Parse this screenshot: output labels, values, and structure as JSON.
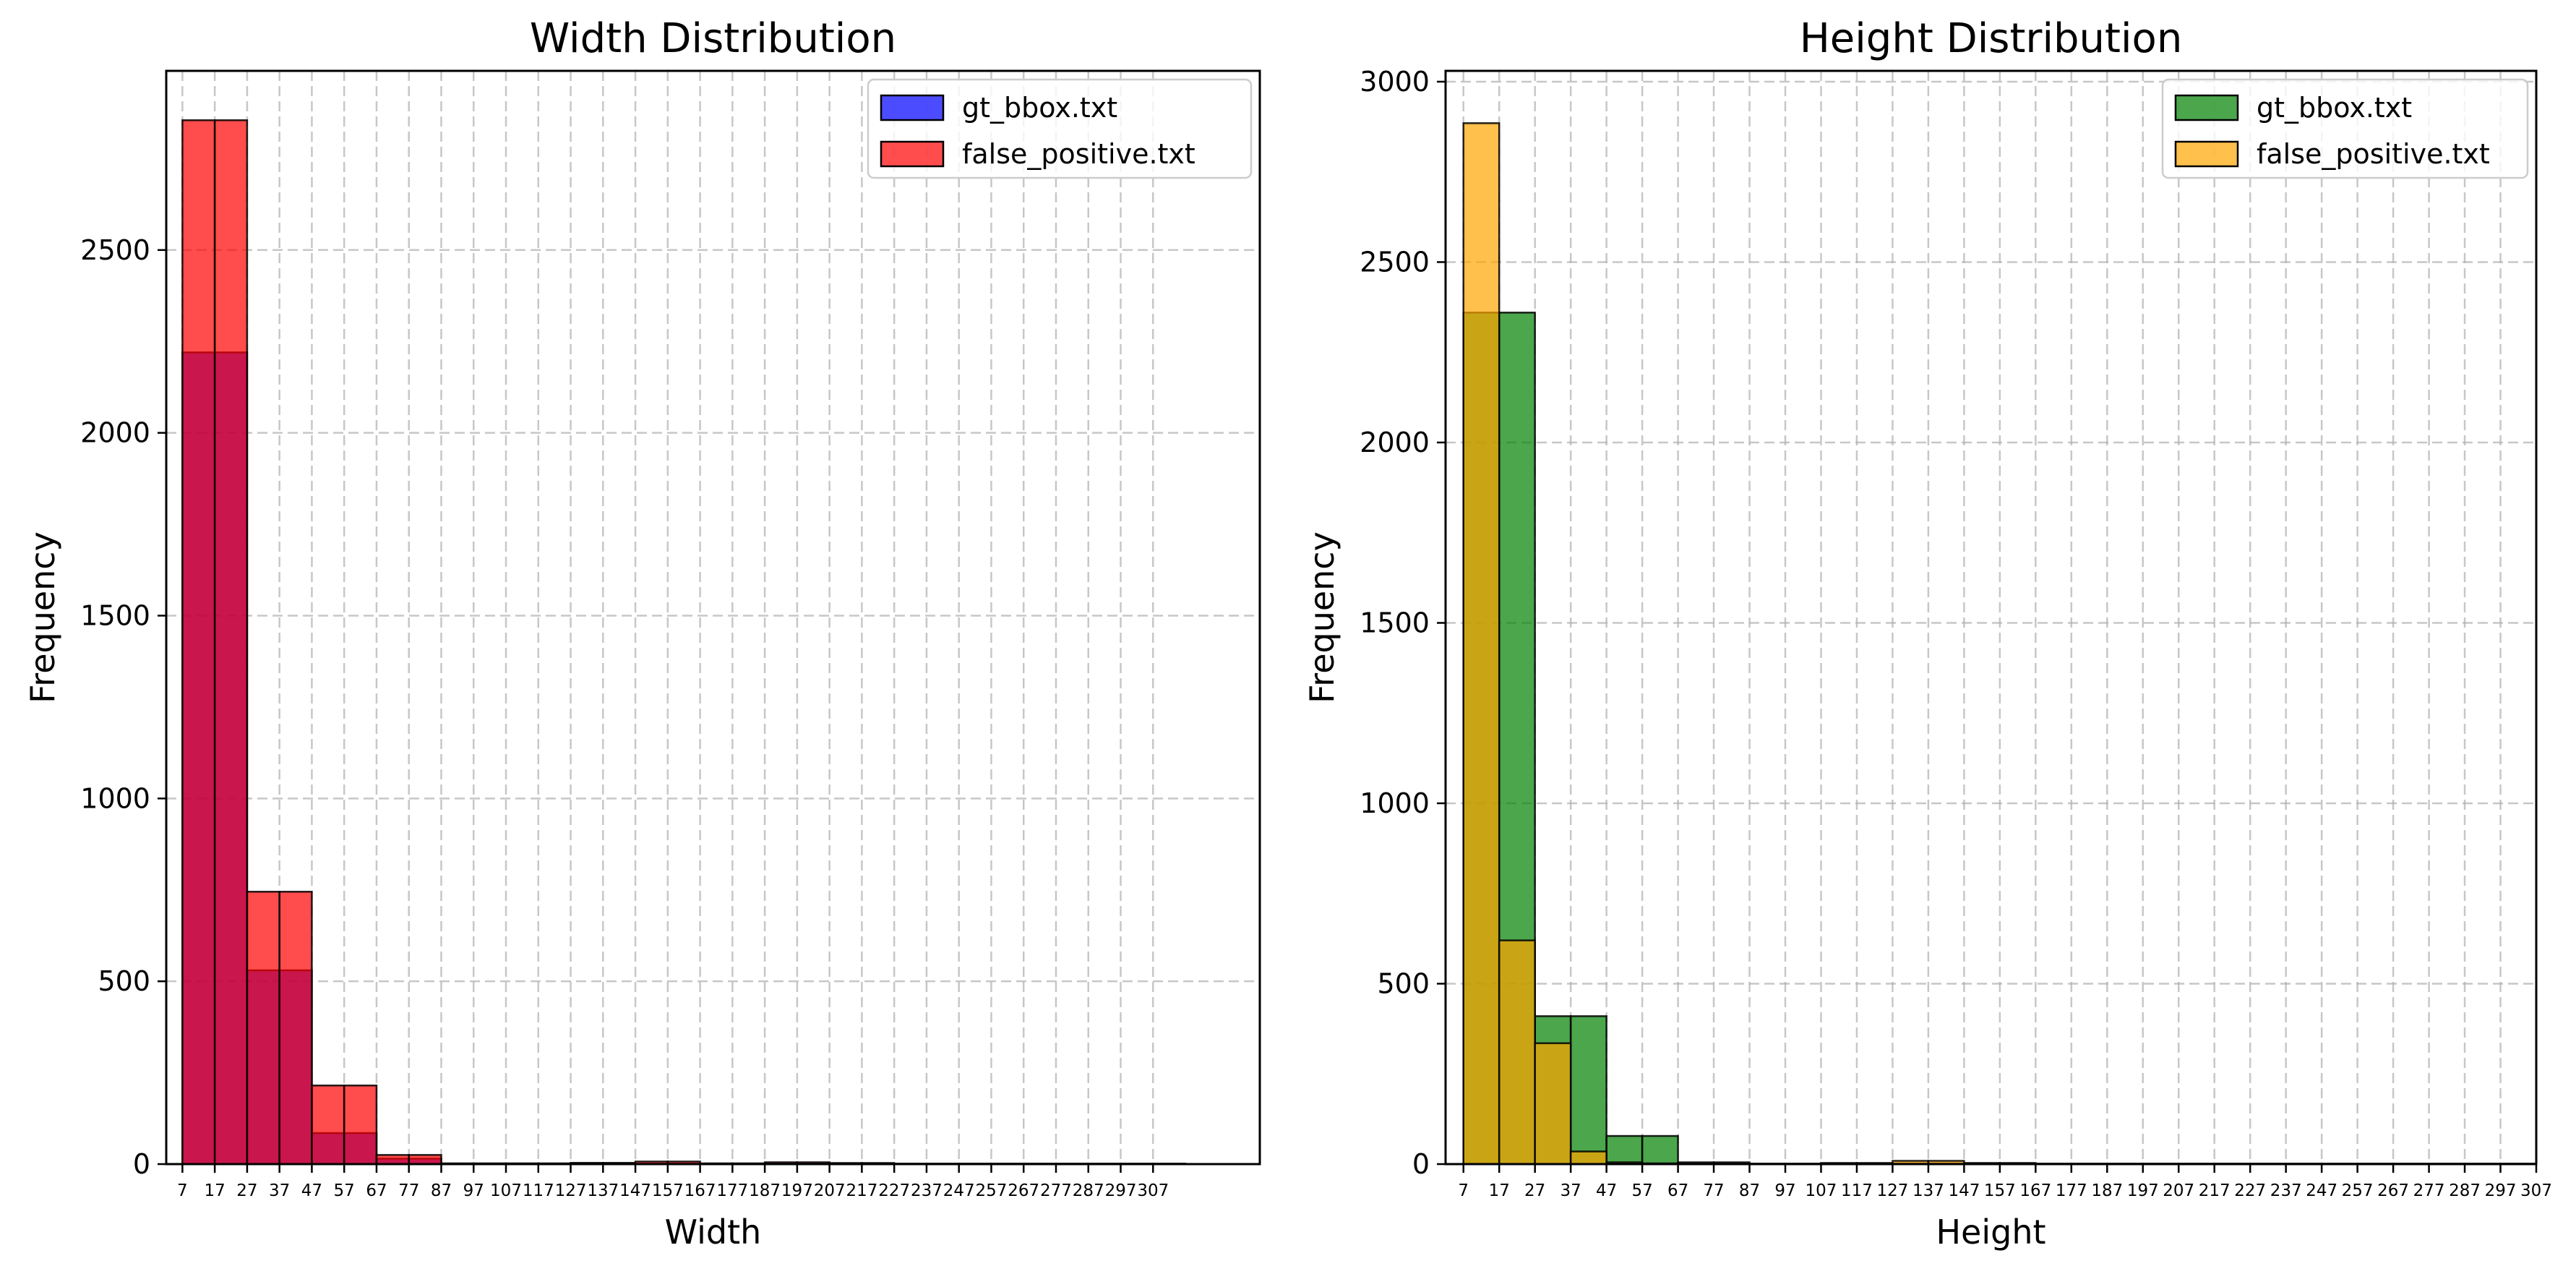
{
  "chart_data": [
    {
      "type": "bar",
      "title": "Width Distribution",
      "xlabel": "Width",
      "ylabel": "Frequency",
      "xlim": [
        2,
        340
      ],
      "ylim": [
        0,
        2990
      ],
      "xticks": [
        7,
        17,
        27,
        37,
        47,
        57,
        67,
        77,
        87,
        97,
        107,
        117,
        127,
        137,
        147,
        157,
        167,
        177,
        187,
        197,
        207,
        217,
        227,
        237,
        247,
        257,
        267,
        277,
        287,
        297,
        307
      ],
      "yticks": [
        0,
        500,
        1000,
        1500,
        2000,
        2500
      ],
      "grid": true,
      "legend_position": "top-right",
      "bin_edges": [
        7,
        17,
        27,
        37,
        47,
        57,
        67,
        77,
        87,
        97,
        107,
        117,
        127,
        137,
        147,
        157,
        167,
        177,
        187,
        197,
        207,
        217,
        227,
        237,
        247,
        257,
        267,
        277,
        287,
        297,
        307,
        317
      ],
      "series": [
        {
          "name": "gt_bbox.txt",
          "color": "#0000ff",
          "values": [
            2220,
            2220,
            530,
            530,
            85,
            85,
            15,
            15,
            1,
            1,
            1,
            1,
            3,
            3,
            1,
            1,
            1,
            1,
            1,
            1,
            1,
            1,
            1,
            1,
            1,
            1,
            1,
            1,
            1,
            1,
            1
          ]
        },
        {
          "name": "false_positive.txt",
          "color": "#ff0000",
          "values": [
            2855,
            2855,
            745,
            745,
            215,
            215,
            25,
            25,
            2,
            2,
            2,
            2,
            3,
            3,
            7,
            7,
            2,
            2,
            5,
            5,
            3,
            3,
            1,
            1,
            1,
            1,
            1,
            1,
            1,
            1,
            1
          ]
        }
      ]
    },
    {
      "type": "bar",
      "title": "Height Distribution",
      "xlabel": "Height",
      "ylabel": "Frequency",
      "xlim": [
        2,
        307
      ],
      "ylim": [
        0,
        3030
      ],
      "xticks": [
        7,
        17,
        27,
        37,
        47,
        57,
        67,
        77,
        87,
        97,
        107,
        117,
        127,
        137,
        147,
        157,
        167,
        177,
        187,
        197,
        207,
        217,
        227,
        237,
        247,
        257,
        267,
        277,
        287,
        297,
        307
      ],
      "yticks": [
        0,
        500,
        1000,
        1500,
        2000,
        2500,
        3000
      ],
      "grid": true,
      "legend_position": "top-right",
      "bin_edges": [
        7,
        17,
        27,
        37,
        47,
        57,
        67,
        77,
        87,
        97,
        107,
        117,
        127,
        137,
        147,
        157,
        167,
        177,
        187,
        197,
        207,
        217,
        227,
        237,
        247,
        257,
        267,
        277,
        287,
        297,
        307
      ],
      "series": [
        {
          "name": "gt_bbox.txt",
          "color": "#008000",
          "values": [
            2360,
            2360,
            410,
            410,
            78,
            78,
            5,
            5,
            1,
            1,
            2,
            2,
            2,
            2,
            2,
            2,
            1,
            1,
            1,
            1,
            1,
            1,
            1,
            1,
            1,
            1,
            1,
            1,
            1,
            1
          ]
        },
        {
          "name": "false_positive.txt",
          "color": "#ffa500",
          "values": [
            2885,
            620,
            335,
            35,
            5,
            2,
            1,
            1,
            1,
            1,
            3,
            3,
            9,
            9,
            3,
            3,
            1,
            1,
            1,
            1,
            1,
            1,
            1,
            1,
            1,
            1,
            1,
            1,
            1,
            1
          ]
        }
      ]
    }
  ]
}
